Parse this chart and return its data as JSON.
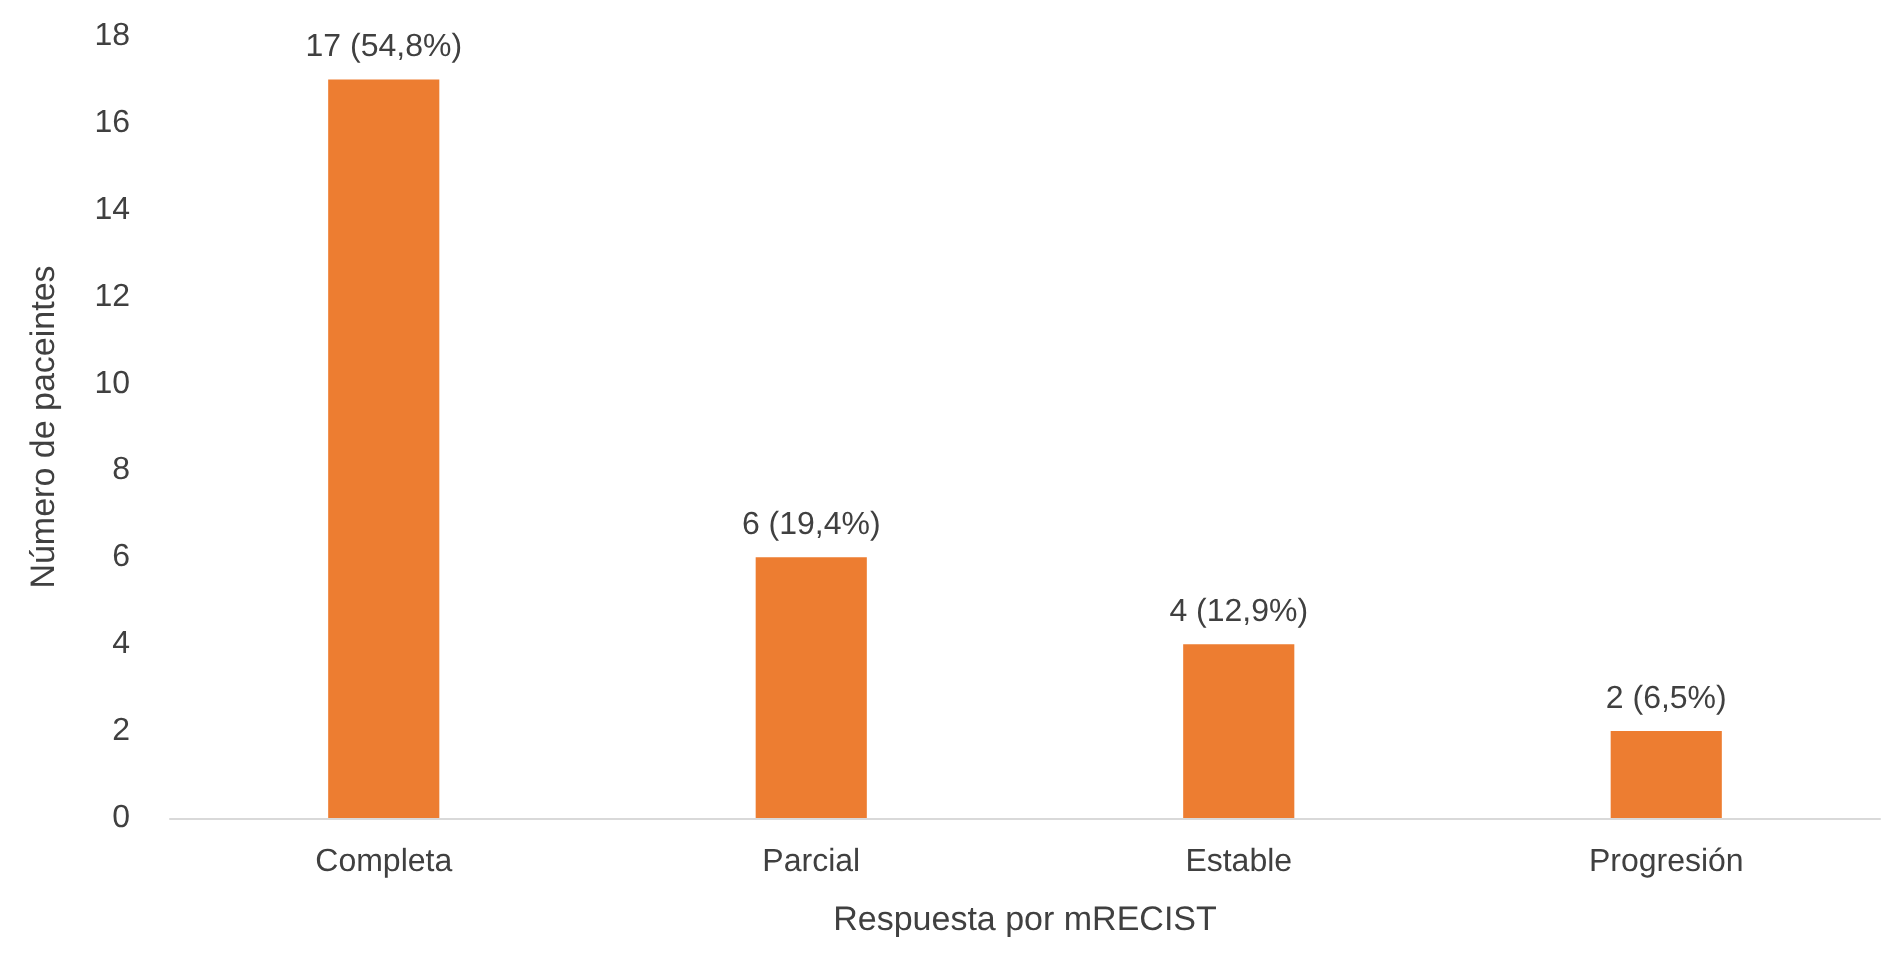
{
  "chart_data": {
    "type": "bar",
    "xlabel": "Respuesta por mRECIST",
    "ylabel": "Número de paceintes",
    "categories": [
      "Completa",
      "Parcial",
      "Estable",
      "Progresión"
    ],
    "values": [
      17,
      6,
      4,
      2
    ],
    "value_labels": [
      "17 (54,8%)",
      "6 (19,4%)",
      "4 (12,9%)",
      "2 (6,5%)"
    ],
    "color": "#ed7d31",
    "ylim": [
      0,
      18
    ],
    "yticks": [
      0,
      2,
      4,
      6,
      8,
      10,
      12,
      14,
      16,
      18
    ]
  }
}
